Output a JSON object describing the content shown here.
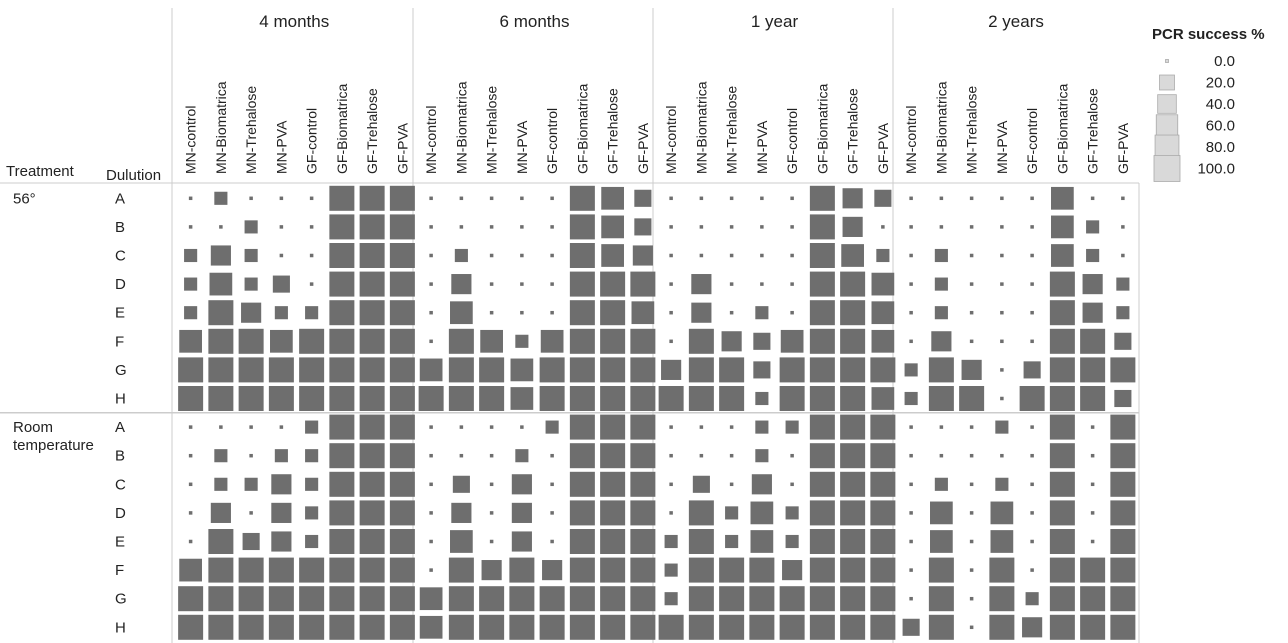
{
  "chart_data": {
    "type": "heatmap",
    "encoding": "square size proportional to PCR success %",
    "row_header_labels": {
      "treatment": "Treatment",
      "dilution": "Dulution"
    },
    "legend": {
      "title": "PCR success %",
      "values": [
        "0.0",
        "20.0",
        "40.0",
        "60.0",
        "80.0",
        "100.0"
      ],
      "placement": "top-right"
    },
    "time_points": [
      "4 months",
      "6 months",
      "1 year",
      "2 years"
    ],
    "methods": [
      "MN-control",
      "MN-Biomatrica",
      "MN-Trehalose",
      "MN-PVA",
      "GF-control",
      "GF-Biomatrica",
      "GF-Trehalose",
      "GF-PVA"
    ],
    "treatments": [
      {
        "label_lines": [
          "56°"
        ],
        "dilutions": [
          "A",
          "B",
          "C",
          "D",
          "E",
          "F",
          "G",
          "H"
        ]
      },
      {
        "label_lines": [
          "Room",
          "temperature"
        ],
        "dilutions": [
          "A",
          "B",
          "C",
          "D",
          "E",
          "F",
          "G",
          "H"
        ]
      }
    ],
    "values": [
      [
        [
          0,
          20,
          0,
          0,
          0,
          100,
          100,
          100,
          0,
          0,
          0,
          0,
          0,
          100,
          80,
          40,
          0,
          0,
          0,
          0,
          0,
          100,
          60,
          40,
          0,
          0,
          0,
          0,
          0,
          80,
          0,
          0
        ],
        [
          0,
          0,
          20,
          0,
          0,
          100,
          100,
          100,
          0,
          0,
          0,
          0,
          0,
          100,
          80,
          40,
          0,
          0,
          0,
          0,
          0,
          100,
          60,
          0,
          0,
          0,
          0,
          0,
          0,
          80,
          20,
          0
        ],
        [
          20,
          60,
          20,
          0,
          0,
          100,
          100,
          100,
          0,
          20,
          0,
          0,
          0,
          100,
          80,
          60,
          0,
          0,
          0,
          0,
          0,
          100,
          80,
          20,
          0,
          20,
          0,
          0,
          0,
          80,
          20,
          0
        ],
        [
          20,
          80,
          20,
          40,
          0,
          100,
          100,
          100,
          0,
          60,
          0,
          0,
          0,
          100,
          100,
          100,
          0,
          60,
          0,
          0,
          0,
          100,
          100,
          80,
          0,
          20,
          0,
          0,
          0,
          100,
          60,
          20
        ],
        [
          20,
          100,
          60,
          20,
          20,
          100,
          100,
          100,
          0,
          80,
          0,
          0,
          0,
          100,
          100,
          80,
          0,
          60,
          0,
          20,
          0,
          100,
          100,
          80,
          0,
          20,
          0,
          0,
          0,
          100,
          60,
          20
        ],
        [
          80,
          100,
          100,
          80,
          100,
          100,
          100,
          100,
          0,
          100,
          80,
          20,
          80,
          100,
          100,
          100,
          0,
          100,
          60,
          40,
          80,
          100,
          100,
          80,
          0,
          60,
          0,
          0,
          0,
          100,
          100,
          40
        ],
        [
          100,
          100,
          100,
          100,
          100,
          100,
          100,
          100,
          80,
          100,
          100,
          80,
          100,
          100,
          100,
          100,
          60,
          100,
          100,
          40,
          100,
          100,
          100,
          100,
          20,
          100,
          60,
          0,
          40,
          100,
          100,
          100
        ],
        [
          100,
          100,
          100,
          100,
          100,
          100,
          100,
          100,
          100,
          100,
          100,
          80,
          100,
          100,
          100,
          100,
          100,
          100,
          100,
          20,
          100,
          100,
          100,
          80,
          20,
          100,
          100,
          0,
          100,
          100,
          100,
          40
        ]
      ],
      [
        [
          0,
          0,
          0,
          0,
          20,
          100,
          100,
          100,
          0,
          0,
          0,
          0,
          20,
          100,
          100,
          100,
          0,
          0,
          0,
          20,
          20,
          100,
          100,
          100,
          0,
          0,
          0,
          20,
          0,
          100,
          0,
          100
        ],
        [
          0,
          20,
          0,
          20,
          20,
          100,
          100,
          100,
          0,
          0,
          0,
          20,
          0,
          100,
          100,
          100,
          0,
          0,
          0,
          20,
          0,
          100,
          100,
          100,
          0,
          0,
          0,
          0,
          0,
          100,
          0,
          100
        ],
        [
          0,
          20,
          20,
          60,
          20,
          100,
          100,
          100,
          0,
          40,
          0,
          60,
          0,
          100,
          100,
          100,
          0,
          40,
          0,
          60,
          0,
          100,
          100,
          100,
          0,
          20,
          0,
          20,
          0,
          100,
          0,
          100
        ],
        [
          0,
          60,
          0,
          60,
          20,
          100,
          100,
          100,
          0,
          60,
          0,
          60,
          0,
          100,
          100,
          100,
          0,
          100,
          20,
          80,
          20,
          100,
          100,
          100,
          0,
          80,
          0,
          80,
          0,
          100,
          0,
          100
        ],
        [
          0,
          100,
          40,
          60,
          20,
          100,
          100,
          100,
          0,
          80,
          0,
          60,
          0,
          100,
          100,
          100,
          20,
          100,
          20,
          80,
          20,
          100,
          100,
          100,
          0,
          80,
          0,
          80,
          0,
          100,
          0,
          100
        ],
        [
          80,
          100,
          100,
          100,
          100,
          100,
          100,
          100,
          0,
          100,
          60,
          100,
          60,
          100,
          100,
          100,
          20,
          100,
          100,
          100,
          60,
          100,
          100,
          100,
          0,
          100,
          0,
          100,
          0,
          100,
          100,
          100
        ],
        [
          100,
          100,
          100,
          100,
          100,
          100,
          100,
          100,
          80,
          100,
          100,
          100,
          100,
          100,
          100,
          100,
          20,
          100,
          100,
          100,
          100,
          100,
          100,
          100,
          0,
          100,
          0,
          100,
          20,
          100,
          100,
          100
        ],
        [
          100,
          100,
          100,
          100,
          100,
          100,
          100,
          100,
          80,
          100,
          100,
          100,
          100,
          100,
          100,
          100,
          100,
          100,
          100,
          100,
          100,
          100,
          100,
          100,
          40,
          100,
          0,
          100,
          60,
          100,
          100,
          100
        ]
      ]
    ],
    "colors": {
      "square": "#6e6e6e",
      "legend_square": "#d9d9d9",
      "legend_edge": "#aaaaaa",
      "grid": "#cccccc",
      "text": "#222222"
    }
  }
}
